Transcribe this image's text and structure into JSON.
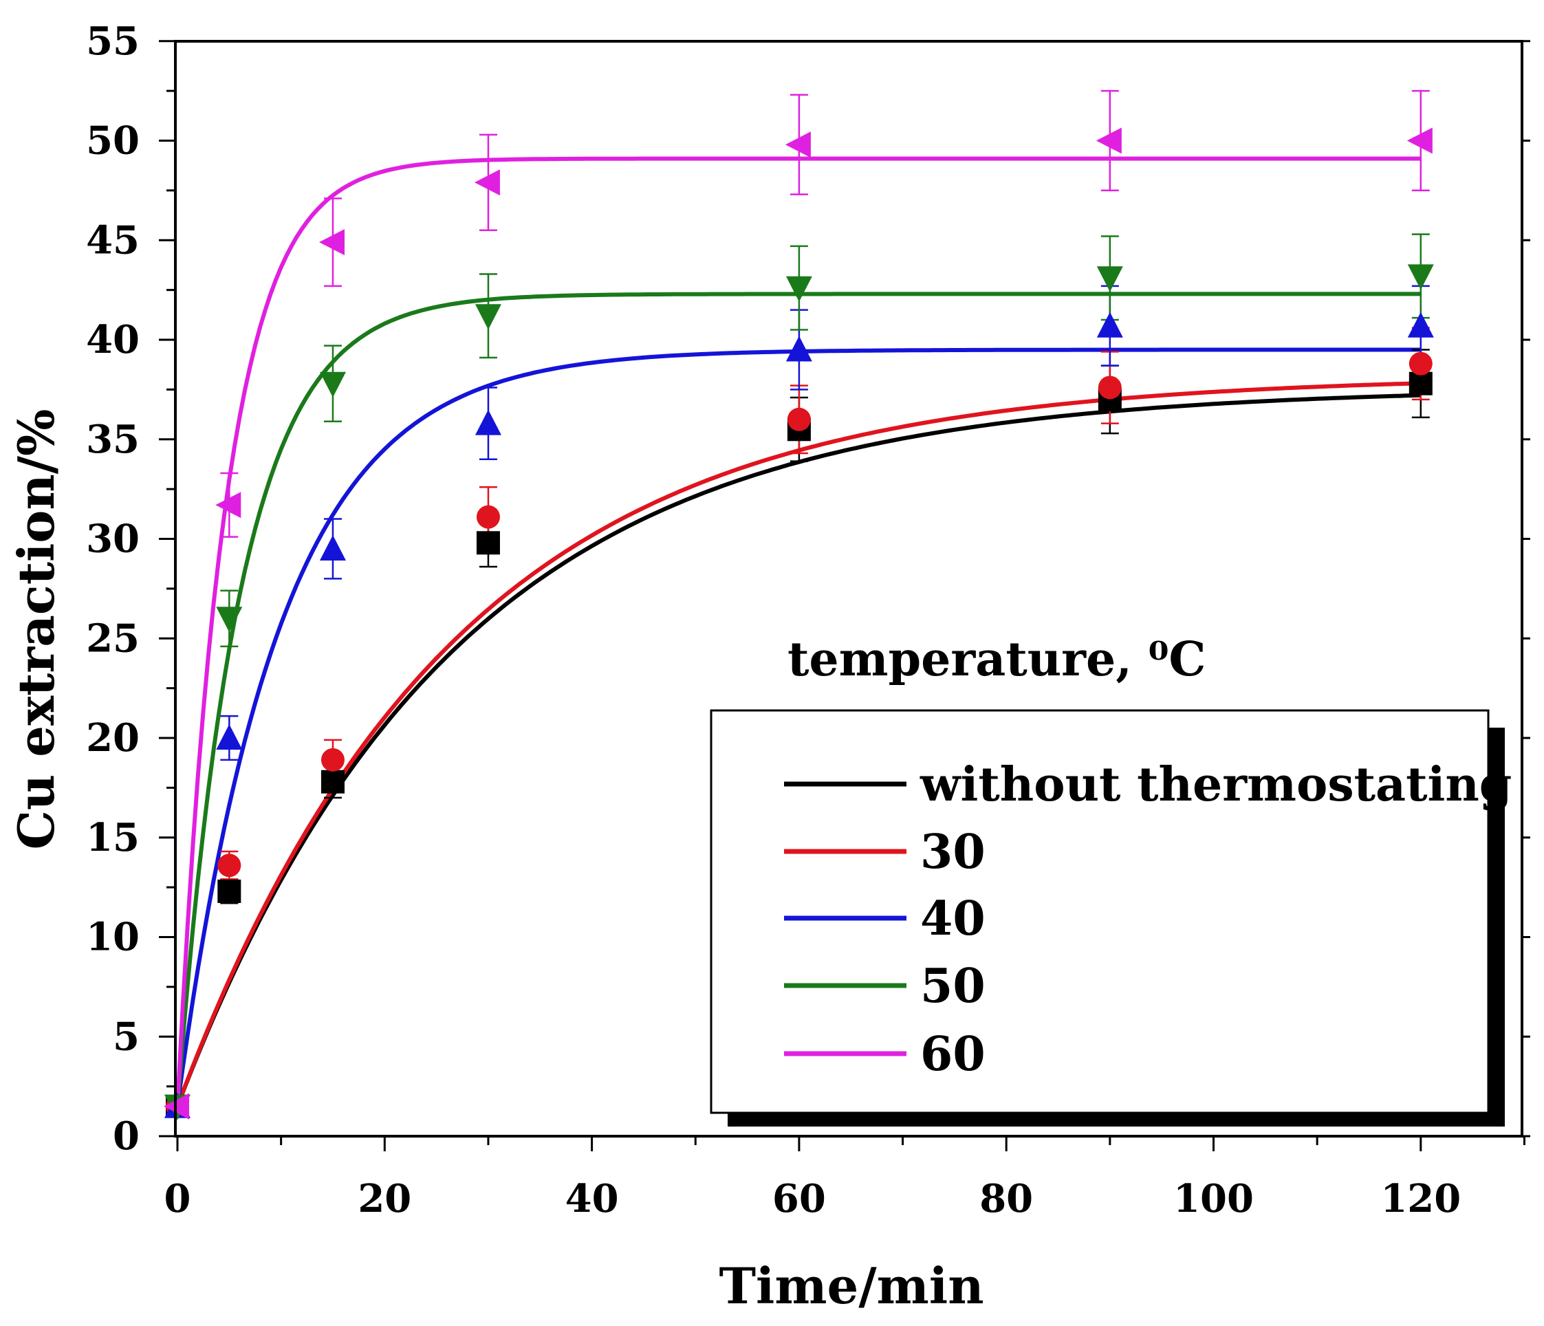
{
  "chart_data": {
    "type": "line",
    "title": "",
    "xlabel": "Time/min",
    "ylabel": "Cu extraction/%",
    "xlim": [
      0,
      130
    ],
    "ylim": [
      0,
      55
    ],
    "x_ticks": [
      "0",
      "20",
      "40",
      "60",
      "80",
      "100",
      "120"
    ],
    "y_ticks": [
      "0",
      "5",
      "10",
      "15",
      "20",
      "25",
      "30",
      "35",
      "40",
      "45",
      "50",
      "55"
    ],
    "x_tick_values": [
      0,
      20,
      40,
      60,
      80,
      100,
      120
    ],
    "y_tick_values": [
      0,
      5,
      10,
      15,
      20,
      25,
      30,
      35,
      40,
      45,
      50,
      55
    ],
    "x": [
      0,
      5,
      15,
      30,
      60,
      90,
      120
    ],
    "legend_title": "temperature, ⁰C",
    "legend_placement": "bottom-right",
    "series": [
      {
        "name": "without thermostating",
        "color": "#000000",
        "marker": "square",
        "values": [
          1.5,
          12.3,
          17.8,
          29.8,
          35.5,
          37.0,
          37.8
        ],
        "errors": [
          0,
          0.6,
          0.8,
          1.2,
          1.6,
          1.7,
          1.7
        ],
        "fit": {
          "asymptote": 37.6,
          "rate": 0.0378
        }
      },
      {
        "name": "30",
        "color": "#e0141e",
        "marker": "circle",
        "values": [
          1.5,
          13.6,
          18.9,
          31.1,
          36.0,
          37.6,
          38.8
        ],
        "errors": [
          0,
          0.7,
          1.0,
          1.5,
          1.7,
          1.8,
          1.8
        ],
        "fit": {
          "asymptote": 38.2,
          "rate": 0.038
        }
      },
      {
        "name": "40",
        "color": "#1414d8",
        "marker": "triangle-up",
        "values": [
          1.5,
          20.0,
          29.5,
          35.8,
          39.5,
          40.7,
          40.7
        ],
        "errors": [
          0,
          1.1,
          1.5,
          1.8,
          2.0,
          2.0,
          2.0
        ],
        "fit": {
          "asymptote": 39.5,
          "rate": 0.1015
        }
      },
      {
        "name": "50",
        "color": "#1a7a1a",
        "marker": "triangle-down",
        "values": [
          1.5,
          26.0,
          37.8,
          41.2,
          42.6,
          43.1,
          43.2
        ],
        "errors": [
          0,
          1.4,
          1.9,
          2.1,
          2.1,
          2.1,
          2.1
        ],
        "fit": {
          "asymptote": 42.3,
          "rate": 0.1655
        }
      },
      {
        "name": "60",
        "color": "#e020e0",
        "marker": "triangle-left",
        "values": [
          1.5,
          31.7,
          44.9,
          47.9,
          49.8,
          50.0,
          50.0
        ],
        "errors": [
          0,
          1.6,
          2.2,
          2.4,
          2.5,
          2.5,
          2.5
        ],
        "fit": {
          "asymptote": 49.1,
          "rate": 0.2165
        }
      }
    ]
  }
}
